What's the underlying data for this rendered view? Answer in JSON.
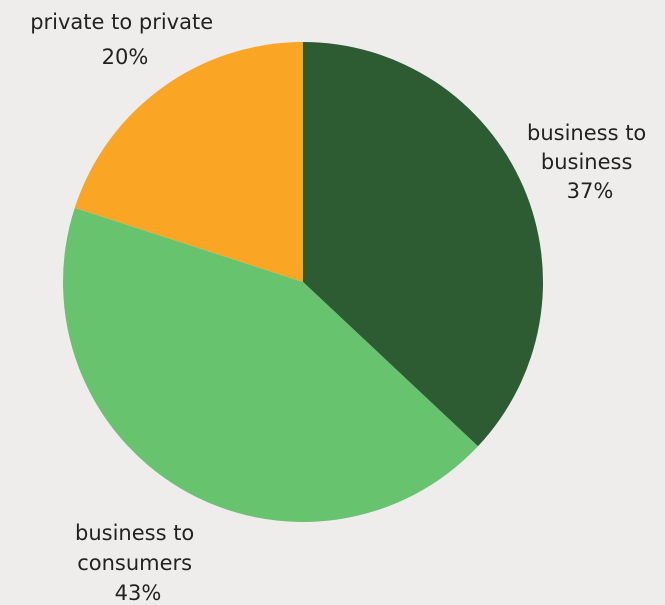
{
  "chart_data": {
    "type": "pie",
    "slices": [
      {
        "label": [
          "business to",
          "business"
        ],
        "value": 37,
        "display": "37%",
        "color": "#2d5c33"
      },
      {
        "label": [
          "business to",
          "consumers"
        ],
        "value": 43,
        "display": "43%",
        "color": "#68c36f"
      },
      {
        "label": [
          "private to private"
        ],
        "value": 20,
        "display": "20%",
        "color": "#fba524"
      }
    ],
    "start_angle_deg": 0,
    "direction": "clockwise",
    "legend": "none"
  },
  "colors": {
    "background": "#efedec",
    "text": "#222222"
  }
}
